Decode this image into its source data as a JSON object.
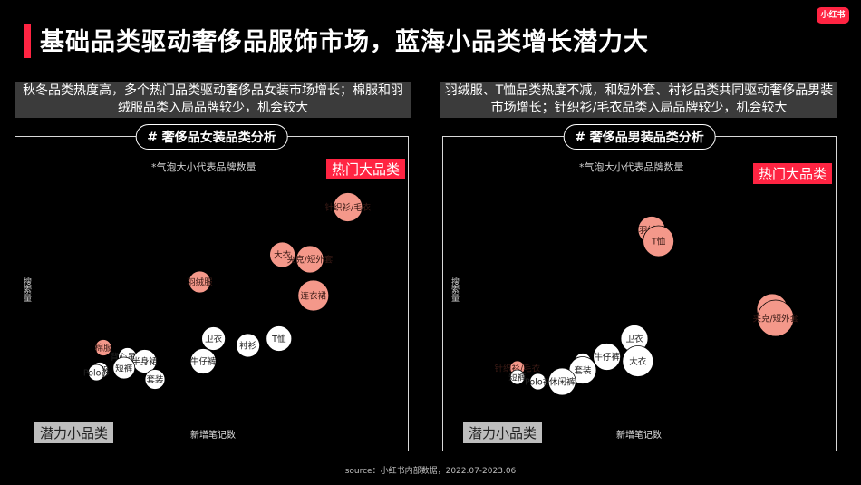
{
  "header": {
    "title": "基础品类驱动奢侈品服饰市场，蓝海小品类增长潜力大",
    "logo_text": "小红书",
    "accent_color": "#ff2442"
  },
  "left": {
    "desc": "秋冬品类热度高，多个热门品类驱动奢侈品女装市场增长；棉服和羽绒服品类入局品牌较少，机会较大",
    "panel_title": "# 奢侈品女装品类分析",
    "note": "*气泡大小代表品牌数量",
    "hot_label": "热门大品类",
    "potential_label": "潜力小品类"
  },
  "right": {
    "desc": "羽绒服、T恤品类热度不减，和短外套、衬衫品类共同驱动奢侈品男装市场增长；针织衫/毛衣品类入局品牌较少，机会较大",
    "panel_title": "# 奢侈品男装品类分析",
    "note": "*气泡大小代表品牌数量",
    "hot_label": "热门大品类",
    "potential_label": "潜力小品类"
  },
  "source": "source：小红书内部数据，2022.07-2023.06",
  "chart_data": [
    {
      "type": "scatter",
      "title": "# 奢侈品女装品类分析",
      "xlabel": "新增笔记数",
      "ylabel": "搜索量",
      "xlim": [
        0,
        100
      ],
      "ylim": [
        0,
        100
      ],
      "size_meaning": "品牌数量",
      "colors": {
        "hot": "#f4988a",
        "normal": "#ffffff"
      },
      "points": [
        {
          "label": "针织衫/毛衣",
          "x": 86,
          "y": 93,
          "size": 32,
          "group": "hot"
        },
        {
          "label": "大衣",
          "x": 67,
          "y": 72,
          "size": 28,
          "group": "hot"
        },
        {
          "label": "夹克/短外套",
          "x": 75,
          "y": 70,
          "size": 30,
          "group": "hot"
        },
        {
          "label": "羽绒服",
          "x": 43,
          "y": 60,
          "size": 24,
          "group": "hot"
        },
        {
          "label": "连衣裙",
          "x": 76,
          "y": 54,
          "size": 34,
          "group": "hot"
        },
        {
          "label": "卫衣",
          "x": 47,
          "y": 35,
          "size": 26,
          "group": "normal"
        },
        {
          "label": "衬衫",
          "x": 57,
          "y": 32,
          "size": 26,
          "group": "normal"
        },
        {
          "label": "T恤",
          "x": 66,
          "y": 35,
          "size": 28,
          "group": "normal"
        },
        {
          "label": "牛仔裤",
          "x": 44,
          "y": 25,
          "size": 28,
          "group": "normal"
        },
        {
          "label": "棉服",
          "x": 15,
          "y": 31,
          "size": 18,
          "group": "hot"
        },
        {
          "label": "背心吊带",
          "x": 22,
          "y": 27,
          "size": 20,
          "group": "normal"
        },
        {
          "label": "半身裙",
          "x": 27,
          "y": 25,
          "size": 26,
          "group": "normal"
        },
        {
          "label": "短裤",
          "x": 21,
          "y": 22,
          "size": 24,
          "group": "normal"
        },
        {
          "label": "礼服",
          "x": 14,
          "y": 21,
          "size": 18,
          "group": "normal"
        },
        {
          "label": "套装",
          "x": 30,
          "y": 17,
          "size": 22,
          "group": "normal"
        },
        {
          "label": "Polo衫",
          "x": 13,
          "y": 20,
          "size": 18,
          "group": "normal"
        }
      ]
    },
    {
      "type": "scatter",
      "title": "# 奢侈品男装品类分析",
      "xlabel": "新增笔记数",
      "ylabel": "搜索量",
      "xlim": [
        0,
        100
      ],
      "ylim": [
        0,
        100
      ],
      "size_meaning": "品牌数量",
      "colors": {
        "hot": "#f4988a",
        "normal": "#ffffff"
      },
      "points": [
        {
          "label": "羽绒服",
          "x": 50,
          "y": 83,
          "size": 30,
          "group": "hot"
        },
        {
          "label": "T恤",
          "x": 52,
          "y": 78,
          "size": 34,
          "group": "hot"
        },
        {
          "label": "衬衫",
          "x": 85,
          "y": 48,
          "size": 34,
          "group": "hot"
        },
        {
          "label": "夹克/短外套",
          "x": 86,
          "y": 44,
          "size": 40,
          "group": "hot"
        },
        {
          "label": "卫衣",
          "x": 45,
          "y": 35,
          "size": 30,
          "group": "normal"
        },
        {
          "label": "牛仔裤",
          "x": 37,
          "y": 27,
          "size": 30,
          "group": "normal"
        },
        {
          "label": "大衣",
          "x": 46,
          "y": 25,
          "size": 34,
          "group": "normal"
        },
        {
          "label": "针织衫/毛衣",
          "x": 11,
          "y": 22,
          "size": 16,
          "group": "hot"
        },
        {
          "label": "背心",
          "x": 30,
          "y": 25,
          "size": 18,
          "group": "normal"
        },
        {
          "label": "套装",
          "x": 30,
          "y": 21,
          "size": 30,
          "group": "normal"
        },
        {
          "label": "短裤",
          "x": 11,
          "y": 18,
          "size": 16,
          "group": "normal"
        },
        {
          "label": "Polo衫",
          "x": 17,
          "y": 16,
          "size": 18,
          "group": "normal"
        },
        {
          "label": "休闲裤",
          "x": 24,
          "y": 16,
          "size": 30,
          "group": "normal"
        }
      ]
    }
  ]
}
